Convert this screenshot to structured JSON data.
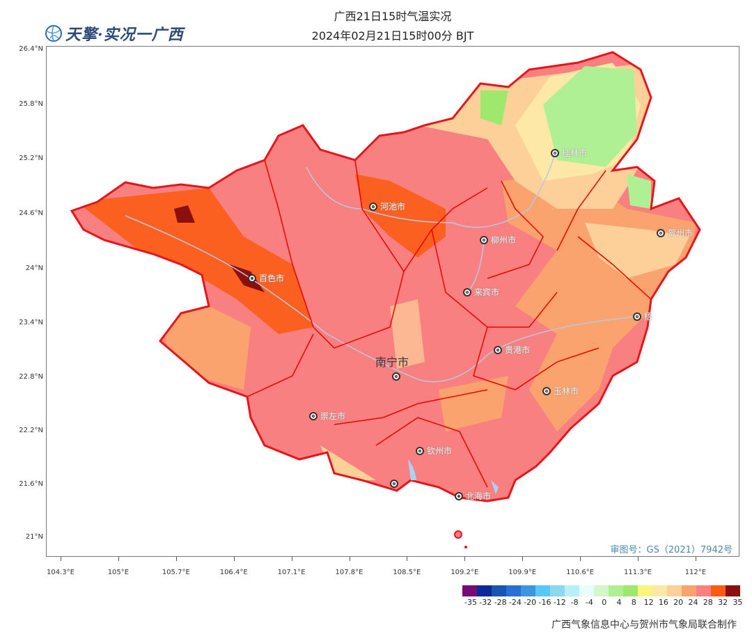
{
  "header": {
    "logo_text": "天擎·实况一广西",
    "title": "广西21日15时气温实况",
    "subtitle": "2024年02月21日15时00分 BJT"
  },
  "axes": {
    "y_ticks": [
      "26.4°N",
      "25.8°N",
      "25.2°N",
      "24.6°N",
      "24°N",
      "23.4°N",
      "22.8°N",
      "22.2°N",
      "21.6°N",
      "21°N"
    ],
    "x_ticks": [
      "104.3°E",
      "105°E",
      "105.7°E",
      "106.4°E",
      "107.1°E",
      "107.8°E",
      "108.5°E",
      "109.2°E",
      "109.9°E",
      "110.6°E",
      "111.3°E",
      "112°E"
    ]
  },
  "cities": [
    {
      "name": "桂林市"
    },
    {
      "name": "河池市"
    },
    {
      "name": "柳州市"
    },
    {
      "name": "贺州市"
    },
    {
      "name": "百色市"
    },
    {
      "name": "来宾市"
    },
    {
      "name": "梧"
    },
    {
      "name": "贵港市"
    },
    {
      "name": "南宁市"
    },
    {
      "name": "玉林市"
    },
    {
      "name": "崇左市"
    },
    {
      "name": "钦州市"
    },
    {
      "name": "北海市"
    },
    {
      "name": ""
    }
  ],
  "approval": "审图号：GS（2021）7942号",
  "legend": {
    "colors": [
      "#7a0a78",
      "#0a2a9a",
      "#1a55b4",
      "#2a70d4",
      "#3d95e0",
      "#5ac8f5",
      "#8ed8ee",
      "#b8f0fa",
      "#eafcfc",
      "#d4f7c9",
      "#b0f095",
      "#9ee86e",
      "#fbf57e",
      "#fde8a8",
      "#fdd09a",
      "#fba36e",
      "#f88080",
      "#fb5a10",
      "#8c0f0f"
    ],
    "labels": [
      "-35",
      "-32",
      "-28",
      "-24",
      "-20",
      "-16",
      "-12",
      "-8",
      "-4",
      "0",
      "4",
      "8",
      "12",
      "16",
      "20",
      "24",
      "28",
      "32",
      "35"
    ]
  },
  "credit": "广西气象信息中心与贺州市气象局联合制作"
}
